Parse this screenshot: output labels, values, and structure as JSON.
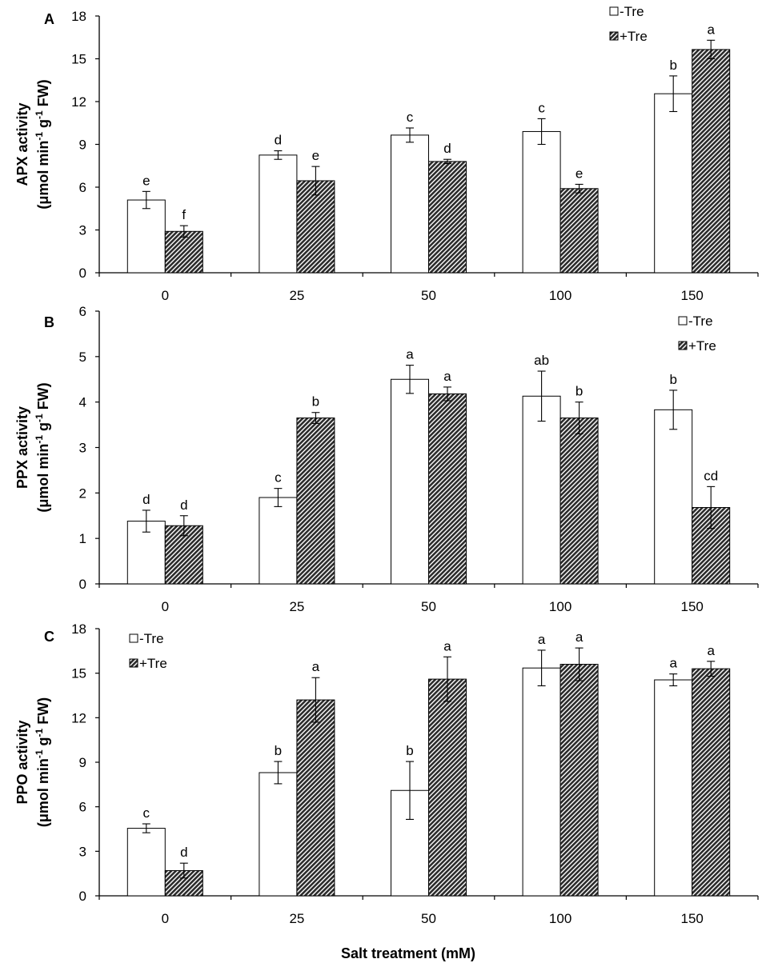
{
  "colors": {
    "minus_tre_fill": "#ffffff",
    "plus_tre_fill": "#2b2b2b",
    "stroke": "#000000",
    "hatch": "diagonal"
  },
  "x_axis_title": "Salt treatment (mM)",
  "chart_data": [
    {
      "panel": "A",
      "type": "bar",
      "categories": [
        "0",
        "25",
        "50",
        "100",
        "150"
      ],
      "ylabel_line1": "APX activity",
      "ylabel_line2_pre": "(μmol min",
      "ylabel_sup1": "-1",
      "ylabel_mid": " g",
      "ylabel_sup2": "-1",
      "ylabel_post": " FW)",
      "ylim": [
        0,
        18
      ],
      "yticks": [
        "0",
        "3",
        "6",
        "9",
        "12",
        "15",
        "18"
      ],
      "legend_position": "top-right",
      "series": [
        {
          "name": "-Tre",
          "values": [
            5.1,
            8.25,
            9.65,
            9.9,
            12.55
          ],
          "errors": [
            0.6,
            0.3,
            0.5,
            0.9,
            1.25
          ],
          "letters": [
            "e",
            "d",
            "c",
            "c",
            "b"
          ]
        },
        {
          "name": "+Tre",
          "values": [
            2.9,
            6.45,
            7.8,
            5.9,
            15.65
          ],
          "errors": [
            0.4,
            1.0,
            0.15,
            0.3,
            0.65
          ],
          "letters": [
            "f",
            "e",
            "d",
            "e",
            "a"
          ]
        }
      ]
    },
    {
      "panel": "B",
      "type": "bar",
      "categories": [
        "0",
        "25",
        "50",
        "100",
        "150"
      ],
      "ylabel_line1": "PPX activity",
      "ylabel_line2_pre": "(μmol min",
      "ylabel_sup1": "-1",
      "ylabel_mid": " g",
      "ylabel_sup2": "-1",
      "ylabel_post": " FW)",
      "ylim": [
        0,
        6
      ],
      "yticks": [
        "0",
        "1",
        "2",
        "3",
        "4",
        "5",
        "6"
      ],
      "legend_position": "top-right",
      "series": [
        {
          "name": "-Tre",
          "values": [
            1.38,
            1.9,
            4.5,
            4.13,
            3.83
          ],
          "errors": [
            0.24,
            0.2,
            0.31,
            0.55,
            0.43
          ],
          "letters": [
            "d",
            "c",
            "a",
            "ab",
            "b"
          ]
        },
        {
          "name": "+Tre",
          "values": [
            1.28,
            3.65,
            4.18,
            3.65,
            1.68
          ],
          "errors": [
            0.22,
            0.12,
            0.15,
            0.35,
            0.46
          ],
          "letters": [
            "d",
            "b",
            "a",
            "b",
            "cd"
          ]
        }
      ]
    },
    {
      "panel": "C",
      "type": "bar",
      "categories": [
        "0",
        "25",
        "50",
        "100",
        "150"
      ],
      "ylabel_line1": "PPO activity",
      "ylabel_line2_pre": "(μmol min",
      "ylabel_sup1": "-1",
      "ylabel_mid": " g",
      "ylabel_sup2": "-1",
      "ylabel_post": " FW)",
      "ylim": [
        0,
        18
      ],
      "yticks": [
        "0",
        "3",
        "6",
        "9",
        "12",
        "15",
        "18"
      ],
      "legend_position": "top-left",
      "series": [
        {
          "name": "-Tre",
          "values": [
            4.55,
            8.3,
            7.1,
            15.35,
            14.55
          ],
          "errors": [
            0.3,
            0.75,
            1.95,
            1.2,
            0.4
          ],
          "letters": [
            "c",
            "b",
            "b",
            "a",
            "a"
          ]
        },
        {
          "name": "+Tre",
          "values": [
            1.7,
            13.2,
            14.6,
            15.6,
            15.3
          ],
          "errors": [
            0.5,
            1.5,
            1.5,
            1.1,
            0.5
          ],
          "letters": [
            "d",
            "a",
            "a",
            "a",
            "a"
          ]
        }
      ]
    }
  ]
}
